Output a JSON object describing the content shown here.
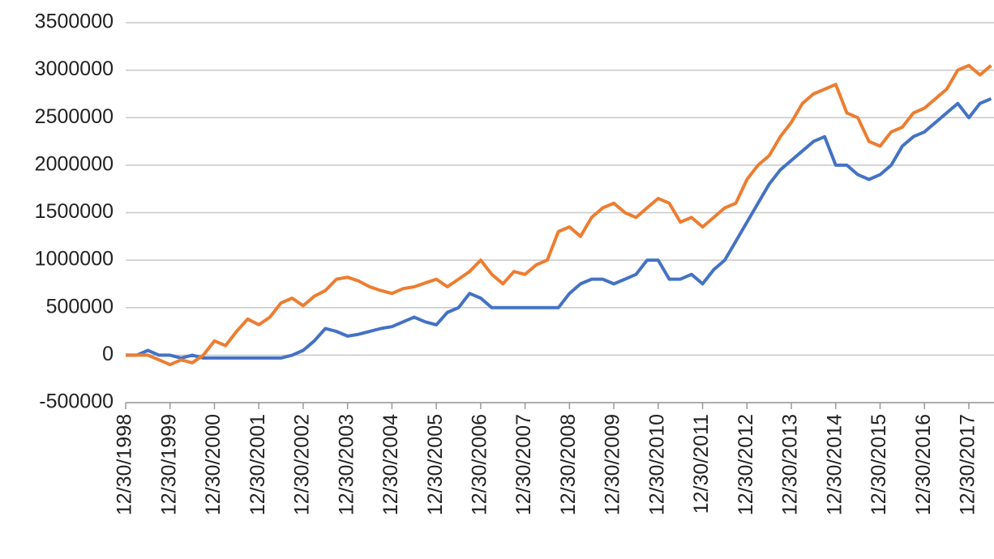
{
  "chart_data": {
    "type": "line",
    "categories": [
      "12/30/1998",
      null,
      null,
      null,
      "12/30/1999",
      null,
      null,
      null,
      "12/30/2000",
      null,
      null,
      null,
      "12/30/2001",
      null,
      null,
      null,
      "12/30/2002",
      null,
      null,
      null,
      "12/30/2003",
      null,
      null,
      null,
      "12/30/2004",
      null,
      null,
      null,
      "12/30/2005",
      null,
      null,
      null,
      "12/30/2006",
      null,
      null,
      null,
      "12/30/2007",
      null,
      null,
      null,
      "12/30/2008",
      null,
      null,
      null,
      "12/30/2009",
      null,
      null,
      null,
      "12/30/2010",
      null,
      null,
      null,
      "12/30/2011",
      null,
      null,
      null,
      "12/30/2012",
      null,
      null,
      null,
      "12/30/2013",
      null,
      null,
      null,
      "12/30/2014",
      null,
      null,
      null,
      "12/30/2015",
      null,
      null,
      null,
      "12/30/2016",
      null,
      null,
      null,
      "12/30/2017",
      null,
      null
    ],
    "series": [
      {
        "color": "#4472c4",
        "values": [
          0,
          0,
          50000,
          0,
          0,
          -30000,
          0,
          -30000,
          -30000,
          -30000,
          -30000,
          -30000,
          -30000,
          -30000,
          -30000,
          0,
          50000,
          150000,
          280000,
          250000,
          200000,
          220000,
          250000,
          280000,
          300000,
          350000,
          400000,
          350000,
          320000,
          450000,
          500000,
          650000,
          600000,
          500000,
          500000,
          500000,
          500000,
          500000,
          500000,
          500000,
          650000,
          750000,
          800000,
          800000,
          750000,
          800000,
          850000,
          1000000,
          1000000,
          800000,
          800000,
          850000,
          750000,
          900000,
          1000000,
          1200000,
          1400000,
          1600000,
          1800000,
          1950000,
          2050000,
          2150000,
          2250000,
          2300000,
          2000000,
          2000000,
          1900000,
          1850000,
          1900000,
          2000000,
          2200000,
          2300000,
          2350000,
          2450000,
          2550000,
          2650000,
          2500000,
          2650000,
          2700000
        ]
      },
      {
        "color": "#ed7d31",
        "values": [
          0,
          0,
          0,
          -50000,
          -100000,
          -50000,
          -80000,
          0,
          150000,
          100000,
          250000,
          380000,
          320000,
          400000,
          550000,
          600000,
          520000,
          620000,
          680000,
          800000,
          820000,
          780000,
          720000,
          680000,
          650000,
          700000,
          720000,
          760000,
          800000,
          720000,
          800000,
          880000,
          1000000,
          850000,
          750000,
          880000,
          850000,
          950000,
          1000000,
          1300000,
          1350000,
          1250000,
          1450000,
          1550000,
          1600000,
          1500000,
          1450000,
          1550000,
          1650000,
          1600000,
          1400000,
          1450000,
          1350000,
          1450000,
          1550000,
          1600000,
          1850000,
          2000000,
          2100000,
          2300000,
          2450000,
          2650000,
          2750000,
          2800000,
          2850000,
          2550000,
          2500000,
          2250000,
          2200000,
          2350000,
          2400000,
          2550000,
          2600000,
          2700000,
          2800000,
          3000000,
          3050000,
          2950000,
          3050000
        ]
      }
    ],
    "ylim": [
      -500000,
      3500000
    ],
    "yticks": [
      -500000,
      0,
      500000,
      1000000,
      1500000,
      2000000,
      2500000,
      3000000,
      3500000
    ],
    "grid": true
  }
}
